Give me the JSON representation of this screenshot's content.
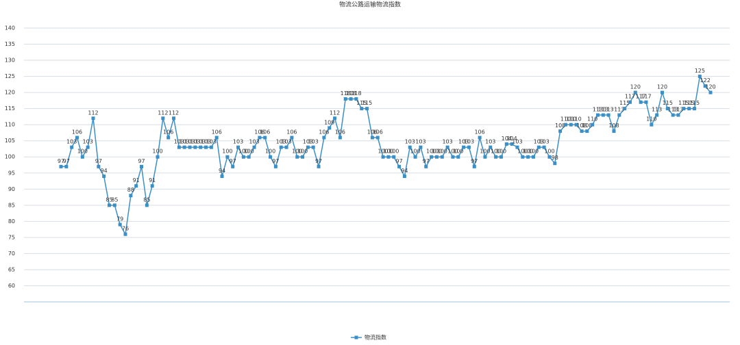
{
  "chart_data": {
    "type": "line",
    "title": "物流公路运输物流指数",
    "categories": [
      null,
      null,
      null,
      null,
      null,
      null,
      null,
      null,
      null,
      null,
      null,
      null,
      null,
      null,
      null,
      null,
      null,
      null,
      null,
      null,
      null,
      null,
      null,
      null,
      null,
      null,
      null,
      null,
      null,
      null,
      null,
      null,
      null,
      null,
      null,
      null,
      null,
      null,
      null,
      null,
      null,
      null,
      null,
      null,
      null,
      null,
      null,
      null,
      null,
      null,
      null,
      null,
      null,
      null,
      null,
      null,
      null,
      null,
      null,
      null,
      null,
      null,
      null,
      null,
      null,
      null,
      null,
      null,
      null,
      null,
      null,
      null,
      null,
      null,
      null,
      null,
      null,
      null,
      null,
      null,
      null,
      null,
      null,
      null,
      null,
      null,
      null,
      null,
      null,
      null,
      null,
      null,
      null,
      null,
      null,
      null,
      null,
      null,
      null,
      null,
      null,
      null,
      null,
      null,
      null,
      null,
      null,
      null,
      null,
      null,
      null,
      null,
      null,
      null,
      null,
      null,
      null,
      null,
      null,
      null,
      null,
      null
    ],
    "series": [
      {
        "name": "物流指数",
        "color": "#3a8fc7",
        "values": [
          97,
          97,
          103,
          106,
          100,
          103,
          112,
          97,
          94,
          85,
          85,
          79,
          76,
          88,
          91,
          97,
          85,
          91,
          100,
          112,
          106,
          112,
          103,
          103,
          103,
          103,
          103,
          103,
          103,
          106,
          94,
          100,
          97,
          103,
          100,
          100,
          103,
          106,
          106,
          100,
          97,
          103,
          103,
          106,
          100,
          100,
          103,
          103,
          97,
          106,
          109,
          112,
          106,
          118,
          118,
          118,
          115,
          115,
          106,
          106,
          100,
          100,
          100,
          97,
          94,
          103,
          100,
          103,
          97,
          100,
          100,
          100,
          103,
          100,
          100,
          103,
          103,
          97,
          106,
          100,
          103,
          100,
          100,
          104,
          104,
          103,
          100,
          100,
          100,
          103,
          103,
          100,
          98,
          108,
          110,
          110,
          110,
          108,
          108,
          110,
          113,
          113,
          113,
          108,
          113,
          115,
          117,
          120,
          117,
          117,
          110,
          113,
          120,
          115,
          113,
          113,
          115,
          115,
          115,
          125,
          122,
          120
        ]
      }
    ],
    "ylim": [
      55,
      140
    ],
    "yticks": [
      60,
      65,
      70,
      75,
      80,
      85,
      90,
      95,
      100,
      105,
      110,
      115,
      120,
      125,
      130,
      135,
      140
    ],
    "grid": true
  }
}
